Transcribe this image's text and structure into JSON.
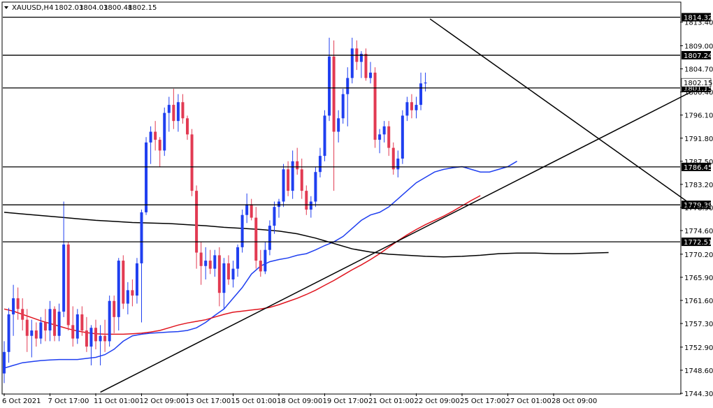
{
  "header": {
    "symbol": "XAUUSD,H4",
    "open": "1802.03",
    "high": "1804.03",
    "low": "1800.48",
    "close": "1802.15"
  },
  "colors": {
    "bull": "#1f3ff0",
    "bear": "#e23a52",
    "ma_fast": "#1f3ff0",
    "ma_mid": "#e0141e",
    "ma_slow": "#000000",
    "level_line": "#000000",
    "label_bg": "#000000",
    "label_text": "#ffffff"
  },
  "chart_data": {
    "type": "candlestick",
    "ylim": [
      1744.3,
      1817.0
    ],
    "y_ticks": [
      "1813.40",
      "1809.00",
      "1804.70",
      "1800.40",
      "1796.10",
      "1791.80",
      "1787.50",
      "1783.20",
      "1778.90",
      "1774.60",
      "1770.20",
      "1765.90",
      "1761.60",
      "1757.30",
      "1752.90",
      "1748.60",
      "1744.30"
    ],
    "x_labels": [
      "6 Oct 2021",
      "7 Oct 17:00",
      "11 Oct 01:00",
      "12 Oct 09:00",
      "13 Oct 17:00",
      "15 Oct 01:00",
      "18 Oct 09:00",
      "19 Oct 17:00",
      "21 Oct 01:00",
      "22 Oct 09:00",
      "25 Oct 17:00",
      "27 Oct 01:00",
      "28 Oct 09:00"
    ],
    "x_label_index": [
      0,
      10,
      20,
      30,
      40,
      50,
      60,
      70,
      80,
      90,
      100,
      110,
      120
    ],
    "levels": [
      {
        "value": 1814.32,
        "label": "1814.32"
      },
      {
        "value": 1807.24,
        "label": "1807.24"
      },
      {
        "value": 1801.15,
        "label": "1801.15"
      },
      {
        "value": 1786.45,
        "label": "1786.45"
      },
      {
        "value": 1779.39,
        "label": "1779.39"
      },
      {
        "value": 1772.51,
        "label": "1772.51"
      }
    ],
    "current_price": {
      "value": 1802.15,
      "label": "1802.15"
    },
    "trendlines": [
      {
        "name": "descending",
        "from": {
          "index": 93,
          "price": 1814.0
        },
        "to": {
          "index": 150,
          "price": 1779.5
        }
      },
      {
        "name": "ascending",
        "from": {
          "index": 21,
          "price": 1744.5
        },
        "to": {
          "index": 150,
          "price": 1800.4
        }
      }
    ],
    "candles": [
      [
        1748.0,
        1754.0,
        1746.2,
        1752.0
      ],
      [
        1752.0,
        1760.2,
        1750.0,
        1759.0
      ],
      [
        1759.0,
        1764.5,
        1755.0,
        1762.0
      ],
      [
        1762.0,
        1764.0,
        1758.0,
        1760.0
      ],
      [
        1760.0,
        1762.0,
        1756.0,
        1758.0
      ],
      [
        1758.0,
        1760.0,
        1752.0,
        1755.0
      ],
      [
        1755.0,
        1758.0,
        1751.0,
        1756.0
      ],
      [
        1756.0,
        1757.5,
        1753.0,
        1754.5
      ],
      [
        1754.5,
        1758.5,
        1753.5,
        1757.5
      ],
      [
        1757.5,
        1760.0,
        1754.0,
        1756.0
      ],
      [
        1756.0,
        1761.5,
        1754.0,
        1760.0
      ],
      [
        1760.0,
        1760.5,
        1754.0,
        1755.0
      ],
      [
        1755.0,
        1761.0,
        1754.0,
        1759.5
      ],
      [
        1759.5,
        1780.0,
        1758.5,
        1772.0
      ],
      [
        1772.0,
        1772.5,
        1756.0,
        1757.0
      ],
      [
        1757.0,
        1760.5,
        1753.0,
        1754.5
      ],
      [
        1754.5,
        1760.0,
        1753.5,
        1759.0
      ],
      [
        1759.0,
        1760.5,
        1755.0,
        1756.0
      ],
      [
        1756.0,
        1758.5,
        1752.0,
        1753.0
      ],
      [
        1753.0,
        1757.0,
        1749.5,
        1756.5
      ],
      [
        1756.5,
        1758.0,
        1752.5,
        1754.0
      ],
      [
        1754.0,
        1757.0,
        1749.5,
        1755.0
      ],
      [
        1755.0,
        1758.0,
        1752.0,
        1754.0
      ],
      [
        1754.0,
        1762.5,
        1753.0,
        1761.5
      ],
      [
        1761.5,
        1762.5,
        1755.5,
        1758.5
      ],
      [
        1758.5,
        1769.5,
        1756.0,
        1769.0
      ],
      [
        1769.0,
        1770.0,
        1760.0,
        1761.0
      ],
      [
        1761.0,
        1765.0,
        1759.0,
        1763.5
      ],
      [
        1763.5,
        1765.5,
        1760.5,
        1762.5
      ],
      [
        1762.5,
        1769.5,
        1761.0,
        1768.5
      ],
      [
        1768.5,
        1778.5,
        1757.5,
        1778.0
      ],
      [
        1778.0,
        1792.0,
        1777.5,
        1791.0
      ],
      [
        1791.0,
        1794.0,
        1787.0,
        1793.0
      ],
      [
        1793.0,
        1795.0,
        1789.5,
        1791.5
      ],
      [
        1791.5,
        1792.0,
        1786.5,
        1789.5
      ],
      [
        1789.5,
        1797.5,
        1788.5,
        1796.5
      ],
      [
        1796.5,
        1799.5,
        1793.0,
        1798.0
      ],
      [
        1798.0,
        1801.0,
        1793.5,
        1795.0
      ],
      [
        1795.0,
        1800.0,
        1793.0,
        1798.5
      ],
      [
        1798.5,
        1800.0,
        1794.5,
        1795.5
      ],
      [
        1795.5,
        1796.0,
        1791.5,
        1792.5
      ],
      [
        1792.5,
        1793.5,
        1781.0,
        1782.0
      ],
      [
        1782.0,
        1783.0,
        1767.5,
        1770.5
      ],
      [
        1770.5,
        1772.5,
        1764.5,
        1768.0
      ],
      [
        1768.0,
        1771.5,
        1765.5,
        1769.0
      ],
      [
        1769.0,
        1771.0,
        1766.5,
        1767.5
      ],
      [
        1767.5,
        1771.0,
        1766.0,
        1770.0
      ],
      [
        1770.0,
        1771.5,
        1760.5,
        1763.0
      ],
      [
        1763.0,
        1769.5,
        1760.0,
        1768.5
      ],
      [
        1768.5,
        1770.0,
        1764.5,
        1765.5
      ],
      [
        1765.5,
        1769.0,
        1764.0,
        1767.5
      ],
      [
        1767.5,
        1772.0,
        1766.0,
        1771.5
      ],
      [
        1771.5,
        1778.5,
        1770.5,
        1777.5
      ],
      [
        1777.5,
        1781.5,
        1776.0,
        1779.5
      ],
      [
        1779.5,
        1780.5,
        1776.5,
        1777.0
      ],
      [
        1777.0,
        1779.0,
        1767.5,
        1769.0
      ],
      [
        1769.0,
        1771.0,
        1766.0,
        1767.0
      ],
      [
        1767.0,
        1772.5,
        1766.5,
        1771.0
      ],
      [
        1771.0,
        1776.5,
        1770.0,
        1775.5
      ],
      [
        1775.5,
        1780.0,
        1774.0,
        1779.0
      ],
      [
        1779.0,
        1780.5,
        1777.0,
        1780.0
      ],
      [
        1780.0,
        1787.0,
        1779.0,
        1786.0
      ],
      [
        1786.0,
        1787.5,
        1781.0,
        1782.0
      ],
      [
        1782.0,
        1789.5,
        1780.5,
        1787.5
      ],
      [
        1787.5,
        1790.0,
        1785.0,
        1786.0
      ],
      [
        1786.0,
        1788.0,
        1780.5,
        1782.0
      ],
      [
        1782.0,
        1783.0,
        1777.5,
        1778.5
      ],
      [
        1778.5,
        1781.0,
        1777.0,
        1780.0
      ],
      [
        1780.0,
        1786.5,
        1779.0,
        1785.5
      ],
      [
        1785.5,
        1790.0,
        1784.5,
        1788.5
      ],
      [
        1788.5,
        1797.0,
        1787.5,
        1796.0
      ],
      [
        1796.0,
        1810.5,
        1795.0,
        1807.0
      ],
      [
        1807.0,
        1810.0,
        1782.0,
        1793.0
      ],
      [
        1793.0,
        1797.0,
        1791.0,
        1795.5
      ],
      [
        1795.5,
        1801.0,
        1794.5,
        1800.0
      ],
      [
        1800.0,
        1805.0,
        1794.0,
        1803.0
      ],
      [
        1803.0,
        1810.5,
        1802.0,
        1808.5
      ],
      [
        1808.5,
        1810.0,
        1804.5,
        1806.0
      ],
      [
        1806.0,
        1808.0,
        1803.0,
        1807.5
      ],
      [
        1807.5,
        1808.5,
        1802.5,
        1803.0
      ],
      [
        1803.0,
        1806.0,
        1802.0,
        1804.0
      ],
      [
        1804.0,
        1805.0,
        1790.0,
        1791.5
      ],
      [
        1791.5,
        1793.5,
        1789.0,
        1792.5
      ],
      [
        1792.5,
        1795.0,
        1791.0,
        1794.0
      ],
      [
        1794.0,
        1795.0,
        1788.5,
        1790.0
      ],
      [
        1790.0,
        1791.0,
        1785.0,
        1786.0
      ],
      [
        1786.0,
        1789.5,
        1784.5,
        1788.0
      ],
      [
        1788.0,
        1797.0,
        1787.0,
        1796.0
      ],
      [
        1796.0,
        1799.5,
        1795.0,
        1798.5
      ],
      [
        1798.5,
        1800.0,
        1795.5,
        1797.0
      ],
      [
        1797.0,
        1799.5,
        1795.5,
        1798.0
      ],
      [
        1798.0,
        1804.0,
        1797.0,
        1802.0
      ],
      [
        1802.0,
        1804.0,
        1800.5,
        1802.15
      ]
    ],
    "candle_index_map": [
      0,
      1,
      2,
      3,
      4,
      5,
      6,
      7,
      8,
      9,
      10,
      11,
      12,
      13,
      14,
      15,
      16,
      17,
      18,
      19,
      20,
      21,
      22,
      23,
      24,
      25,
      26,
      27,
      28,
      29,
      30,
      31,
      32,
      33,
      34,
      35,
      36,
      37,
      38,
      39,
      40,
      41,
      42,
      43,
      44,
      45,
      46,
      47,
      48,
      49,
      50,
      51,
      52,
      53,
      54,
      55,
      56,
      57,
      58,
      59,
      60,
      61,
      62,
      63,
      64,
      65,
      66,
      67,
      68,
      69,
      70,
      71,
      72,
      73,
      74,
      75,
      76,
      77,
      78,
      79,
      80,
      81,
      82,
      83,
      84,
      85,
      86,
      87,
      88,
      89,
      90,
      91,
      92
    ],
    "series": [
      {
        "values": [
          1749.0,
          1749.5,
          1750.0,
          1750.2,
          1750.4,
          1750.5,
          1750.6,
          1750.6,
          1750.6,
          1750.8,
          1751.0,
          1751.5,
          1752.5,
          1754.0,
          1755.0,
          1755.3,
          1755.5,
          1755.6,
          1755.7,
          1755.8,
          1756.0,
          1756.5,
          1757.5,
          1758.8,
          1760.0,
          1762.0,
          1764.0,
          1766.5,
          1768.0,
          1768.8,
          1769.2,
          1769.5,
          1770.0,
          1770.3,
          1771.0,
          1771.8,
          1772.5,
          1773.5,
          1775.0,
          1776.5,
          1777.5,
          1778.0,
          1779.0,
          1780.5,
          1782.0,
          1783.5,
          1784.5,
          1785.5,
          1786.0,
          1786.3,
          1786.5,
          1786.0,
          1785.5,
          1785.5,
          1786.0,
          1786.5,
          1787.5
        ]
      },
      {
        "values": [
          1760.0,
          1759.6,
          1759.0,
          1758.4,
          1757.8,
          1757.3,
          1756.8,
          1756.3,
          1755.9,
          1755.6,
          1755.4,
          1755.3,
          1755.3,
          1755.3,
          1755.4,
          1755.5,
          1755.7,
          1756.0,
          1756.5,
          1757.0,
          1757.4,
          1757.7,
          1758.0,
          1758.5,
          1759.0,
          1759.4,
          1759.6,
          1759.8,
          1760.0,
          1760.3,
          1760.8,
          1761.4,
          1762.0,
          1762.7,
          1763.5,
          1764.4,
          1765.3,
          1766.3,
          1767.3,
          1768.2,
          1769.2,
          1770.3,
          1771.5,
          1772.7,
          1773.8,
          1774.8,
          1775.7,
          1776.5,
          1777.3,
          1778.2,
          1779.2,
          1780.2,
          1781.1
        ]
      },
      {
        "values": [
          1778.0,
          1777.7,
          1777.4,
          1777.1,
          1776.8,
          1776.5,
          1776.3,
          1776.1,
          1776.0,
          1775.9,
          1775.7,
          1775.5,
          1775.2,
          1775.0,
          1774.8,
          1774.5,
          1774.0,
          1773.2,
          1772.2,
          1771.2,
          1770.6,
          1770.2,
          1770.0,
          1769.8,
          1769.7,
          1769.8,
          1770.0,
          1770.3,
          1770.4,
          1770.4,
          1770.3,
          1770.3,
          1770.4,
          1770.5
        ]
      }
    ],
    "series_start_index": [
      0,
      0,
      0
    ],
    "series_step": [
      2,
      2,
      4
    ]
  }
}
